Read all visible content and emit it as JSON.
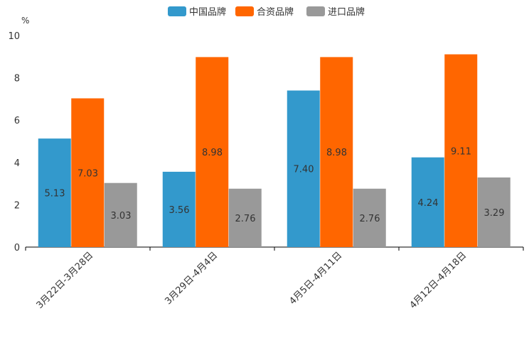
{
  "chart_data": {
    "type": "bar",
    "title": "",
    "xlabel": "",
    "ylabel": "",
    "yunit": "%",
    "ylim": [
      0,
      10
    ],
    "yticks": [
      0,
      2,
      4,
      6,
      8,
      10
    ],
    "grid": false,
    "legend_position": "top-center",
    "categories": [
      "3月22日-3月28日",
      "3月29日-4月4日",
      "4月5日-4月11日",
      "4月12日-4月18日"
    ],
    "series": [
      {
        "name": "中国品牌",
        "color": "#3399cc",
        "values": [
          5.13,
          3.56,
          7.4,
          4.24
        ]
      },
      {
        "name": "合资品牌",
        "color": "#ff6600",
        "values": [
          7.03,
          8.98,
          8.98,
          9.11
        ]
      },
      {
        "name": "进口品牌",
        "color": "#999999",
        "values": [
          3.03,
          2.76,
          2.76,
          3.29
        ]
      }
    ]
  }
}
